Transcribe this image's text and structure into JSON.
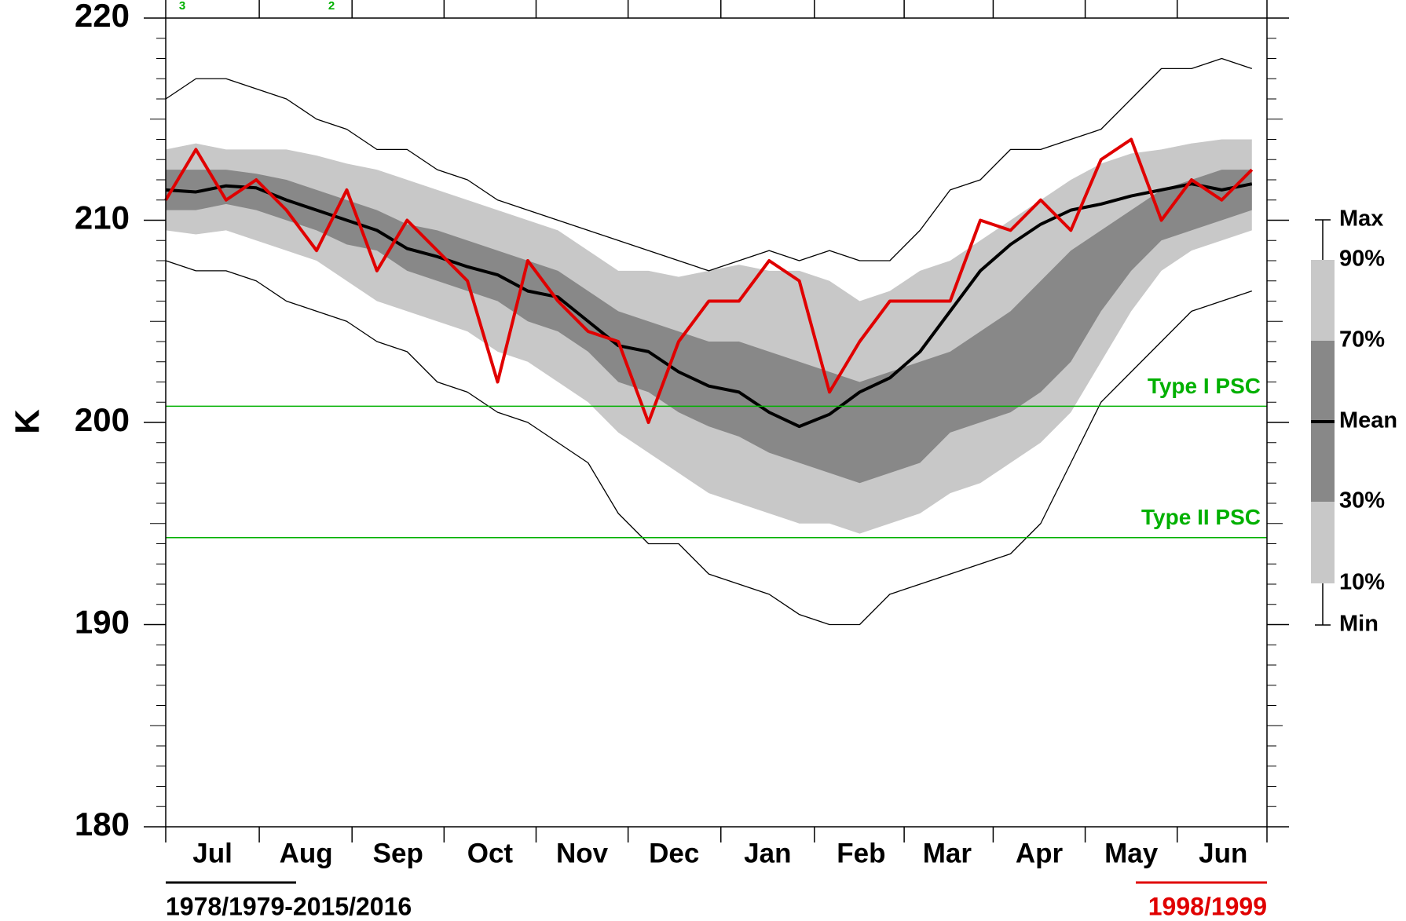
{
  "chart_data": {
    "type": "line",
    "y_label": "K",
    "period_label": "1978/1979-2015/2016",
    "annotations": [
      "3",
      "2"
    ],
    "x": [
      0,
      10,
      20,
      30,
      40,
      50,
      60,
      70,
      80,
      90,
      100,
      110,
      120,
      130,
      140,
      150,
      160,
      170,
      180,
      190,
      200,
      210,
      220,
      230,
      240,
      250,
      260,
      270,
      280,
      290,
      300,
      310,
      320,
      330,
      340,
      350,
      360
    ],
    "xlim": [
      0,
      365
    ],
    "xticks": [
      {
        "value": 15.5,
        "label": "Jul"
      },
      {
        "value": 46.5,
        "label": "Aug"
      },
      {
        "value": 77,
        "label": "Sep"
      },
      {
        "value": 107.5,
        "label": "Oct"
      },
      {
        "value": 138,
        "label": "Nov"
      },
      {
        "value": 168.5,
        "label": "Dec"
      },
      {
        "value": 199.5,
        "label": "Jan"
      },
      {
        "value": 230.5,
        "label": "Feb"
      },
      {
        "value": 259,
        "label": "Mar"
      },
      {
        "value": 289.5,
        "label": "Apr"
      },
      {
        "value": 320,
        "label": "May"
      },
      {
        "value": 350.5,
        "label": "Jun"
      }
    ],
    "ylim": [
      180,
      220
    ],
    "yticks": [
      180,
      190,
      200,
      210,
      220
    ],
    "series": [
      {
        "name": "Max",
        "color": "#000000",
        "values": [
          216,
          217,
          217,
          216.5,
          216,
          215,
          214.5,
          213.5,
          213.5,
          212.5,
          212,
          211,
          210.5,
          210,
          209.5,
          209,
          208.5,
          208,
          207.5,
          208,
          208.5,
          208,
          208.5,
          208,
          208,
          209.5,
          211.5,
          212,
          213.5,
          213.5,
          214,
          214.5,
          216,
          217.5,
          217.5,
          218,
          217.5
        ]
      },
      {
        "name": "90%",
        "color": "#c8c8c8",
        "values": [
          213.5,
          213.8,
          213.5,
          213.5,
          213.5,
          213.2,
          212.8,
          212.5,
          212,
          211.5,
          211,
          210.5,
          210,
          209.5,
          208.5,
          207.5,
          207.5,
          207.2,
          207.5,
          207.8,
          207.5,
          207.5,
          207,
          206,
          206.5,
          207.5,
          208,
          209,
          210,
          211,
          212,
          212.8,
          213.3,
          213.5,
          213.8,
          214,
          214
        ]
      },
      {
        "name": "70%",
        "color": "#888888",
        "values": [
          212.5,
          212.5,
          212.5,
          212.3,
          212,
          211.5,
          211,
          210.5,
          209.8,
          209.5,
          209,
          208.5,
          208,
          207.5,
          206.5,
          205.5,
          205,
          204.5,
          204,
          204,
          203.5,
          203,
          202.5,
          202,
          202.5,
          203,
          203.5,
          204.5,
          205.5,
          207,
          208.5,
          209.5,
          210.5,
          211.5,
          212,
          212.5,
          212.5
        ]
      },
      {
        "name": "Mean",
        "color": "#000000",
        "values": [
          211.5,
          211.4,
          211.7,
          211.6,
          211,
          210.5,
          210,
          209.5,
          208.6,
          208.2,
          207.7,
          207.3,
          206.5,
          206.2,
          205,
          203.8,
          203.5,
          202.5,
          201.8,
          201.5,
          200.5,
          199.8,
          200.4,
          201.5,
          202.2,
          203.5,
          205.5,
          207.5,
          208.8,
          209.8,
          210.5,
          210.8,
          211.2,
          211.5,
          211.8,
          211.5,
          211.8
        ]
      },
      {
        "name": "30%",
        "color": "#888888",
        "values": [
          210.5,
          210.5,
          210.8,
          210.5,
          210,
          209.5,
          208.8,
          208.5,
          207.5,
          207,
          206.5,
          206,
          205,
          204.5,
          203.5,
          202,
          201.5,
          200.5,
          199.8,
          199.3,
          198.5,
          198,
          197.5,
          197,
          197.5,
          198,
          199.5,
          200,
          200.5,
          201.5,
          203,
          205.5,
          207.5,
          209,
          209.5,
          210,
          210.5
        ]
      },
      {
        "name": "10%",
        "color": "#c8c8c8",
        "values": [
          209.5,
          209.3,
          209.5,
          209,
          208.5,
          208,
          207,
          206,
          205.5,
          205,
          204.5,
          203.5,
          203,
          202,
          201,
          199.5,
          198.5,
          197.5,
          196.5,
          196,
          195.5,
          195,
          195,
          194.5,
          195,
          195.5,
          196.5,
          197,
          198,
          199,
          200.5,
          203,
          205.5,
          207.5,
          208.5,
          209,
          209.5
        ]
      },
      {
        "name": "Min",
        "color": "#000000",
        "values": [
          208,
          207.5,
          207.5,
          207,
          206,
          205.5,
          205,
          204,
          203.5,
          202,
          201.5,
          200.5,
          200,
          199,
          198,
          195.5,
          194,
          194,
          192.5,
          192,
          191.5,
          190.5,
          190,
          190,
          191.5,
          192,
          192.5,
          193,
          193.5,
          195,
          198,
          201,
          202.5,
          204,
          205.5,
          206,
          206.5
        ]
      },
      {
        "name": "1998/1999",
        "color": "#e00000",
        "values": [
          211,
          213.5,
          211,
          212,
          210.5,
          208.5,
          211.5,
          207.5,
          210,
          208.5,
          207,
          202,
          208,
          206,
          204.5,
          204,
          200,
          204,
          206,
          206,
          208,
          207,
          201.5,
          204,
          206,
          206,
          206,
          210,
          209.5,
          211,
          209.5,
          213,
          214,
          210,
          212,
          211,
          212.5
        ]
      }
    ],
    "hlines": [
      {
        "name": "Type I PSC",
        "value": 200.8,
        "color": "#00b000"
      },
      {
        "name": "Type II PSC",
        "value": 194.3,
        "color": "#00b000"
      }
    ]
  }
}
